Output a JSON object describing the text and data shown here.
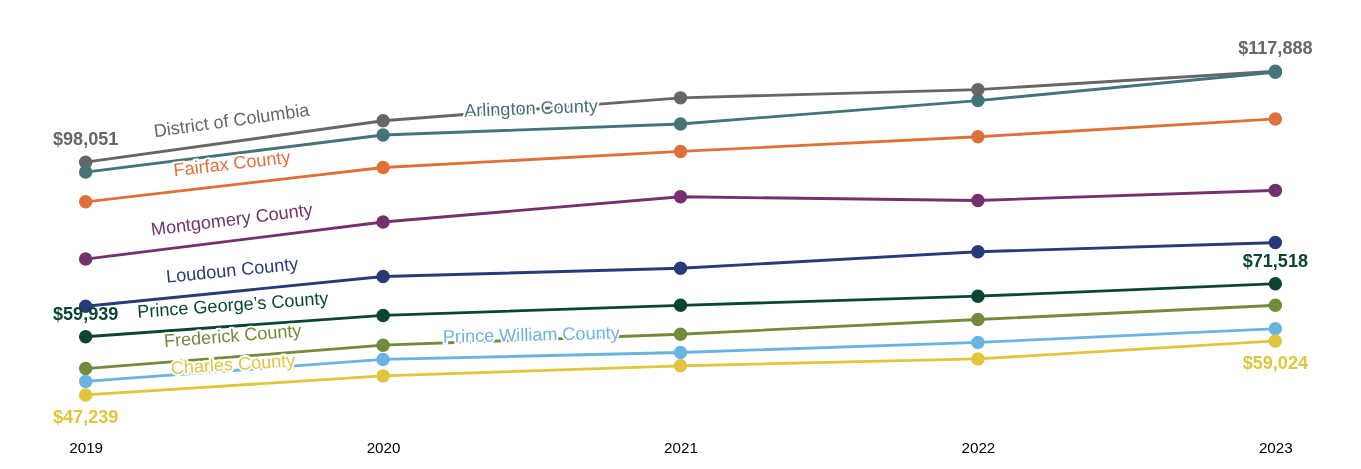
{
  "chart_data": {
    "type": "line",
    "x": [
      2019,
      2020,
      2021,
      2022,
      2023
    ],
    "xlim": [
      2019,
      2023
    ],
    "xticks": [
      2019,
      2020,
      2021,
      2022,
      2023
    ],
    "tick_labels": "x",
    "grid": false,
    "legend": false,
    "marker": "circle",
    "line_style": "solid",
    "series": [
      {
        "name": "District of Columbia",
        "color": "#666666",
        "values": [
          98051,
          107100,
          112100,
          113900,
          117888
        ],
        "value_labels": [
          "$98,051",
          null,
          null,
          null,
          "$117,888"
        ]
      },
      {
        "name": "Arlington County",
        "color": "#44737a",
        "values": [
          95900,
          104000,
          106400,
          111500,
          117700
        ]
      },
      {
        "name": "Fairfax County",
        "color": "#e0703a",
        "values": [
          89400,
          96900,
          100400,
          103600,
          107500
        ]
      },
      {
        "name": "Montgomery County",
        "color": "#74316e",
        "values": [
          76900,
          85000,
          90500,
          89700,
          91900
        ]
      },
      {
        "name": "Loudoun County",
        "color": "#283a7a",
        "values": [
          66600,
          73100,
          74900,
          78500,
          80500
        ]
      },
      {
        "name": "Prince George’s County",
        "color": "#0b4630",
        "values": [
          59939,
          64600,
          66800,
          68800,
          71518
        ],
        "value_labels": [
          "$59,939",
          null,
          null,
          null,
          "$71,518"
        ]
      },
      {
        "name": "Frederick County",
        "color": "#728a3a",
        "values": [
          53000,
          58100,
          60500,
          63700,
          66800
        ]
      },
      {
        "name": "Prince William County",
        "color": "#6bb3e3",
        "values": [
          50200,
          55000,
          56500,
          58700,
          61700
        ]
      },
      {
        "name": "Charles County",
        "color": "#e0c53d",
        "values": [
          47239,
          51400,
          53600,
          55100,
          59024
        ],
        "value_labels": [
          "$47,239",
          null,
          null,
          null,
          "$59,024"
        ]
      }
    ]
  }
}
